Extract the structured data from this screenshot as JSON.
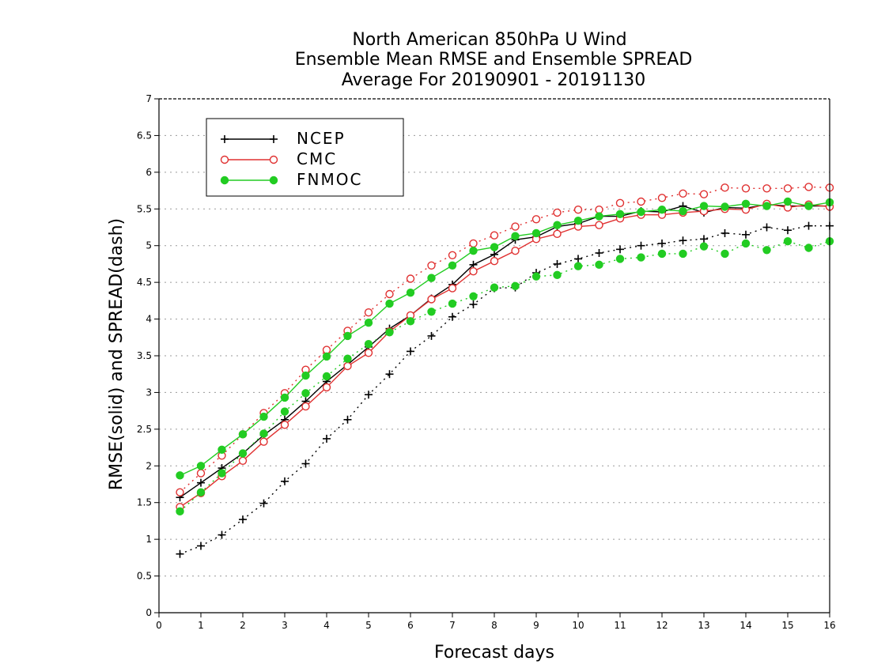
{
  "chart_data": {
    "type": "line",
    "title_lines": [
      "North American 850hPa U Wind",
      "Ensemble Mean RMSE and Ensemble SPREAD",
      "Average For 20190901 - 20191130"
    ],
    "xlabel": "Forecast days",
    "ylabel": "RMSE(solid) and SPREAD(dash)",
    "xlim": [
      0,
      16
    ],
    "ylim": [
      0,
      7
    ],
    "xticks": [
      "0",
      "1",
      "2",
      "3",
      "4",
      "5",
      "6",
      "7",
      "8",
      "9",
      "10",
      "11",
      "12",
      "13",
      "14",
      "15",
      "16"
    ],
    "yticks": [
      "0",
      "0.5",
      "1",
      "1.5",
      "2",
      "2.5",
      "3",
      "3.5",
      "4",
      "4.5",
      "5",
      "5.5",
      "6",
      "6.5",
      "7"
    ],
    "grid": "horizontal dotted",
    "legend_position": "top-left",
    "x": [
      0.5,
      1,
      1.5,
      2,
      2.5,
      3,
      3.5,
      4,
      4.5,
      5,
      5.5,
      6,
      6.5,
      7,
      7.5,
      8,
      8.5,
      9,
      9.5,
      10,
      10.5,
      11,
      11.5,
      12,
      12.5,
      13,
      13.5,
      14,
      14.5,
      15,
      15.5,
      16
    ],
    "series": [
      {
        "name": "NCEP",
        "color": "#000000",
        "marker": "plus",
        "rmse": [
          1.57,
          1.77,
          1.97,
          2.17,
          2.42,
          2.63,
          2.88,
          3.15,
          3.38,
          3.62,
          3.87,
          4.05,
          4.28,
          4.47,
          4.74,
          4.88,
          5.08,
          5.12,
          5.26,
          5.3,
          5.4,
          5.4,
          5.47,
          5.46,
          5.54,
          5.45,
          5.52,
          5.51,
          5.56,
          5.54,
          5.54,
          5.54
        ],
        "spread": [
          0.8,
          0.91,
          1.06,
          1.27,
          1.49,
          1.79,
          2.03,
          2.37,
          2.63,
          2.97,
          3.25,
          3.56,
          3.77,
          4.03,
          4.2,
          4.42,
          4.43,
          4.63,
          4.75,
          4.82,
          4.9,
          4.95,
          5.0,
          5.03,
          5.07,
          5.09,
          5.17,
          5.15,
          5.25,
          5.21,
          5.27,
          5.27
        ]
      },
      {
        "name": "CMC",
        "color": "#e03030",
        "marker": "open-circle",
        "rmse": [
          1.44,
          1.63,
          1.86,
          2.07,
          2.33,
          2.56,
          2.81,
          3.07,
          3.36,
          3.54,
          3.83,
          4.05,
          4.27,
          4.42,
          4.65,
          4.79,
          4.93,
          5.09,
          5.16,
          5.26,
          5.28,
          5.37,
          5.42,
          5.42,
          5.45,
          5.47,
          5.5,
          5.49,
          5.57,
          5.52,
          5.56,
          5.53
        ],
        "spread": [
          1.64,
          1.9,
          2.14,
          2.43,
          2.72,
          2.99,
          3.31,
          3.58,
          3.84,
          4.09,
          4.34,
          4.55,
          4.73,
          4.87,
          5.03,
          5.14,
          5.26,
          5.36,
          5.45,
          5.49,
          5.49,
          5.58,
          5.6,
          5.65,
          5.71,
          5.7,
          5.79,
          5.78,
          5.78,
          5.78,
          5.8,
          5.79
        ]
      },
      {
        "name": "FNMOC",
        "color": "#22cc22",
        "marker": "filled-circle",
        "rmse": [
          1.87,
          2.0,
          2.22,
          2.43,
          2.67,
          2.93,
          3.23,
          3.49,
          3.77,
          3.95,
          4.21,
          4.36,
          4.56,
          4.73,
          4.93,
          4.98,
          5.13,
          5.17,
          5.28,
          5.34,
          5.4,
          5.43,
          5.46,
          5.49,
          5.47,
          5.54,
          5.53,
          5.57,
          5.54,
          5.6,
          5.54,
          5.59
        ],
        "spread": [
          1.38,
          1.64,
          1.9,
          2.17,
          2.44,
          2.74,
          2.99,
          3.22,
          3.46,
          3.66,
          3.82,
          3.97,
          4.1,
          4.21,
          4.31,
          4.43,
          4.45,
          4.58,
          4.6,
          4.72,
          4.74,
          4.82,
          4.84,
          4.89,
          4.89,
          4.99,
          4.89,
          5.03,
          4.94,
          5.06,
          4.97,
          5.06
        ]
      }
    ]
  }
}
